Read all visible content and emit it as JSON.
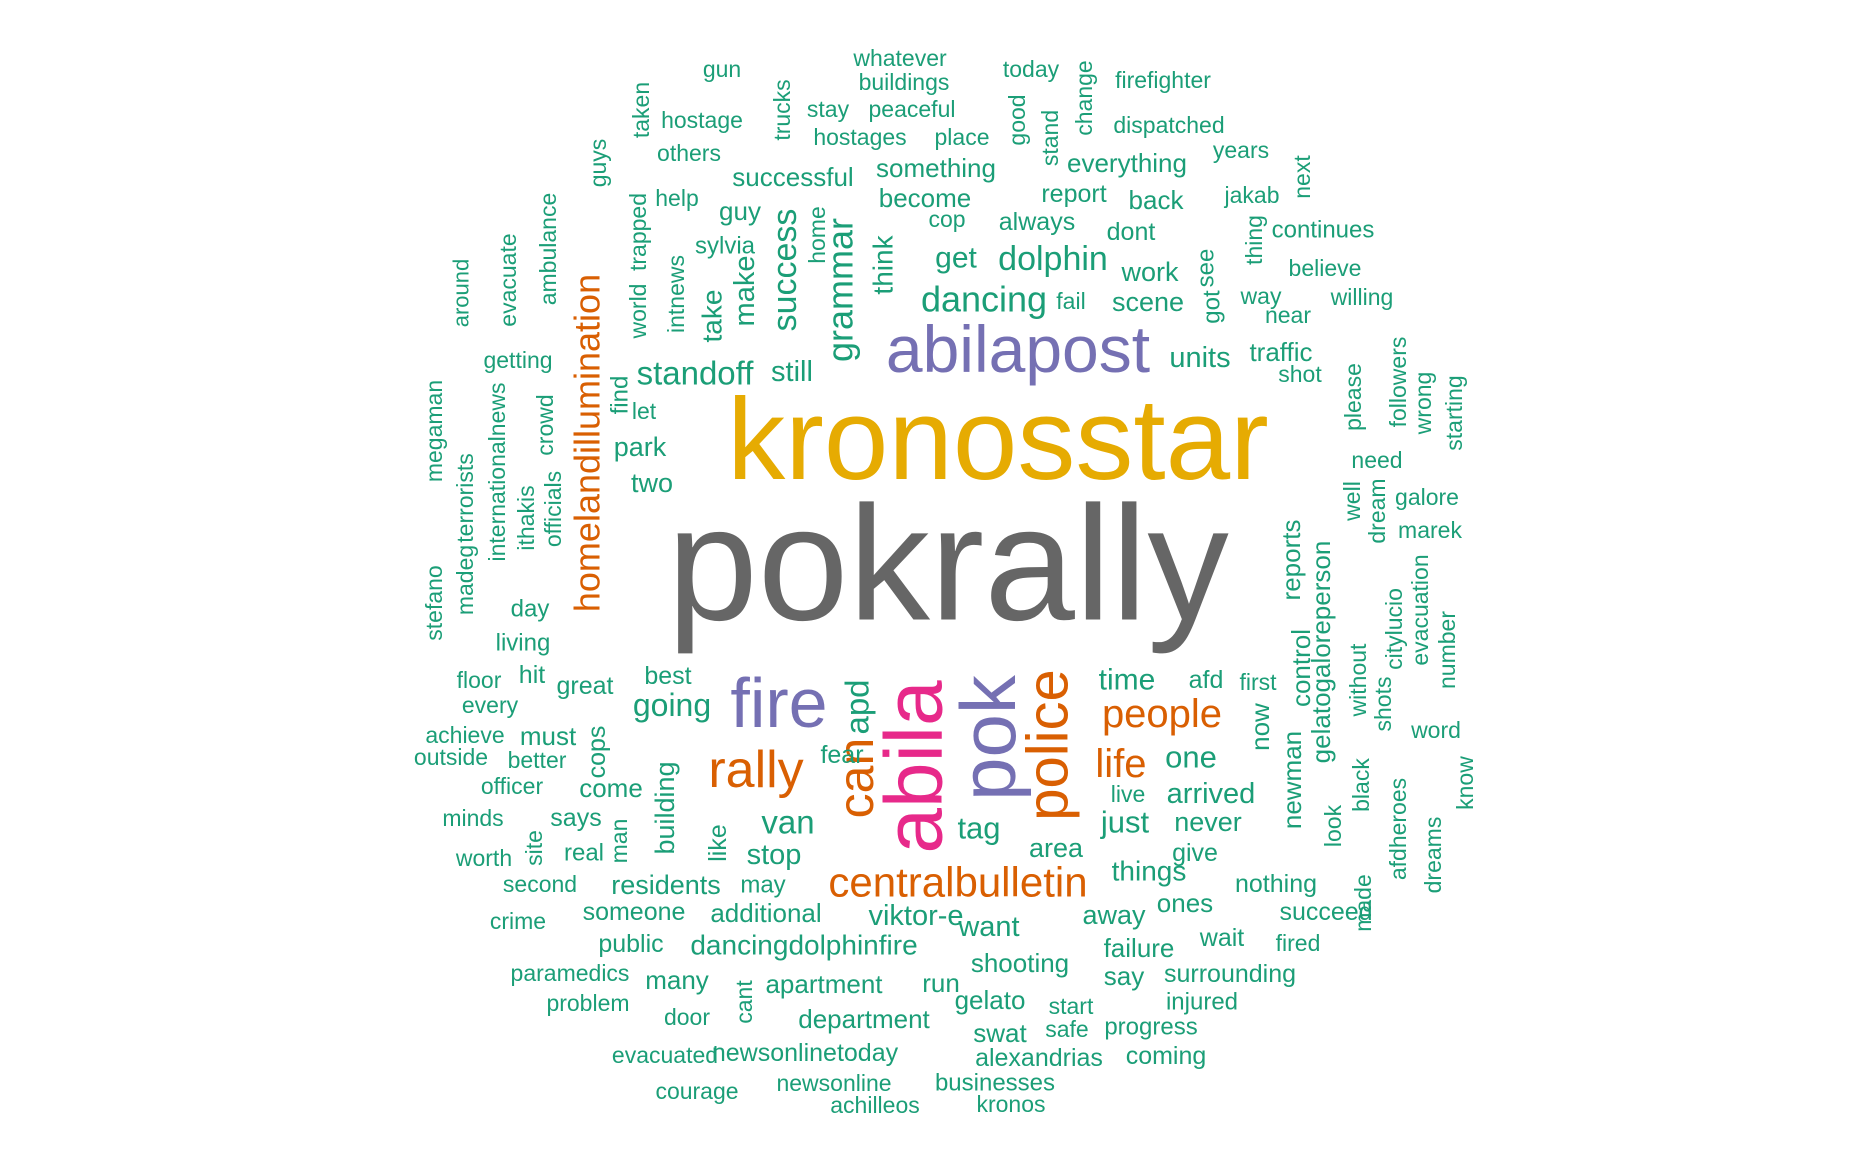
{
  "colors": {
    "green": "#1b9e77",
    "orange": "#d95f02",
    "purple": "#7570b3",
    "pink": "#e7298a",
    "gold": "#e6ab02",
    "gray": "#666666"
  },
  "words": [
    {
      "t": "pokrally",
      "c": "gray"
    },
    {
      "t": "kronosstar",
      "c": "gold"
    },
    {
      "t": "abilapost",
      "c": "purple"
    },
    {
      "t": "fire",
      "c": "purple"
    },
    {
      "t": "pok",
      "c": "purple"
    },
    {
      "t": "abila",
      "c": "pink"
    },
    {
      "t": "police",
      "c": "orange"
    },
    {
      "t": "rally",
      "c": "orange"
    },
    {
      "t": "can",
      "c": "orange"
    },
    {
      "t": "centralbulletin",
      "c": "orange"
    },
    {
      "t": "people",
      "c": "orange"
    },
    {
      "t": "life",
      "c": "orange"
    },
    {
      "t": "homelandillumination",
      "c": "orange"
    },
    {
      "t": "whatever",
      "c": "green"
    },
    {
      "t": "today",
      "c": "green"
    },
    {
      "t": "gun",
      "c": "green"
    },
    {
      "t": "buildings",
      "c": "green"
    },
    {
      "t": "firefighter",
      "c": "green"
    },
    {
      "t": "change",
      "c": "green"
    },
    {
      "t": "taken",
      "c": "green"
    },
    {
      "t": "trucks",
      "c": "green"
    },
    {
      "t": "stay",
      "c": "green"
    },
    {
      "t": "peaceful",
      "c": "green"
    },
    {
      "t": "good",
      "c": "green"
    },
    {
      "t": "hostage",
      "c": "green"
    },
    {
      "t": "hostages",
      "c": "green"
    },
    {
      "t": "place",
      "c": "green"
    },
    {
      "t": "stand",
      "c": "green"
    },
    {
      "t": "dispatched",
      "c": "green"
    },
    {
      "t": "guys",
      "c": "green"
    },
    {
      "t": "others",
      "c": "green"
    },
    {
      "t": "years",
      "c": "green"
    },
    {
      "t": "something",
      "c": "green"
    },
    {
      "t": "everything",
      "c": "green"
    },
    {
      "t": "successful",
      "c": "green"
    },
    {
      "t": "next",
      "c": "green"
    },
    {
      "t": "help",
      "c": "green"
    },
    {
      "t": "become",
      "c": "green"
    },
    {
      "t": "report",
      "c": "green"
    },
    {
      "t": "back",
      "c": "green"
    },
    {
      "t": "jakab",
      "c": "green"
    },
    {
      "t": "ambulance",
      "c": "green"
    },
    {
      "t": "trapped",
      "c": "green"
    },
    {
      "t": "guy",
      "c": "green"
    },
    {
      "t": "cop",
      "c": "green"
    },
    {
      "t": "always",
      "c": "green"
    },
    {
      "t": "home",
      "c": "green"
    },
    {
      "t": "dont",
      "c": "green"
    },
    {
      "t": "thing",
      "c": "green"
    },
    {
      "t": "continues",
      "c": "green"
    },
    {
      "t": "evacuate",
      "c": "green"
    },
    {
      "t": "sylvia",
      "c": "green"
    },
    {
      "t": "success",
      "c": "green"
    },
    {
      "t": "grammar",
      "c": "green"
    },
    {
      "t": "think",
      "c": "green"
    },
    {
      "t": "get",
      "c": "green"
    },
    {
      "t": "dolphin",
      "c": "green"
    },
    {
      "t": "see",
      "c": "green"
    },
    {
      "t": "around",
      "c": "green"
    },
    {
      "t": "world",
      "c": "green"
    },
    {
      "t": "intnews",
      "c": "green"
    },
    {
      "t": "make",
      "c": "green"
    },
    {
      "t": "work",
      "c": "green"
    },
    {
      "t": "believe",
      "c": "green"
    },
    {
      "t": "take",
      "c": "green"
    },
    {
      "t": "dancing",
      "c": "green"
    },
    {
      "t": "fail",
      "c": "green"
    },
    {
      "t": "scene",
      "c": "green"
    },
    {
      "t": "got",
      "c": "green"
    },
    {
      "t": "way",
      "c": "green"
    },
    {
      "t": "willing",
      "c": "green"
    },
    {
      "t": "near",
      "c": "green"
    },
    {
      "t": "getting",
      "c": "green"
    },
    {
      "t": "standoff",
      "c": "green"
    },
    {
      "t": "still",
      "c": "green"
    },
    {
      "t": "units",
      "c": "green"
    },
    {
      "t": "traffic",
      "c": "green"
    },
    {
      "t": "followers",
      "c": "green"
    },
    {
      "t": "find",
      "c": "green"
    },
    {
      "t": "shot",
      "c": "green"
    },
    {
      "t": "wrong",
      "c": "green"
    },
    {
      "t": "starting",
      "c": "green"
    },
    {
      "t": "megaman",
      "c": "green"
    },
    {
      "t": "internationalnews",
      "c": "green"
    },
    {
      "t": "crowd",
      "c": "green"
    },
    {
      "t": "let",
      "c": "green"
    },
    {
      "t": "please",
      "c": "green"
    },
    {
      "t": "park",
      "c": "green"
    },
    {
      "t": "need",
      "c": "green"
    },
    {
      "t": "terrorists",
      "c": "green"
    },
    {
      "t": "two",
      "c": "green"
    },
    {
      "t": "galore",
      "c": "green"
    },
    {
      "t": "officials",
      "c": "green"
    },
    {
      "t": "ithakis",
      "c": "green"
    },
    {
      "t": "well",
      "c": "green"
    },
    {
      "t": "dream",
      "c": "green"
    },
    {
      "t": "marek",
      "c": "green"
    },
    {
      "t": "reports",
      "c": "green"
    },
    {
      "t": "madeg",
      "c": "green"
    },
    {
      "t": "stefano",
      "c": "green"
    },
    {
      "t": "day",
      "c": "green"
    },
    {
      "t": "evacuation",
      "c": "green"
    },
    {
      "t": "gelatogaloreperson",
      "c": "green"
    },
    {
      "t": "citylucio",
      "c": "green"
    },
    {
      "t": "control",
      "c": "green"
    },
    {
      "t": "living",
      "c": "green"
    },
    {
      "t": "number",
      "c": "green"
    },
    {
      "t": "without",
      "c": "green"
    },
    {
      "t": "shots",
      "c": "green"
    },
    {
      "t": "time",
      "c": "green"
    },
    {
      "t": "floor",
      "c": "green"
    },
    {
      "t": "hit",
      "c": "green"
    },
    {
      "t": "best",
      "c": "green"
    },
    {
      "t": "afd",
      "c": "green"
    },
    {
      "t": "first",
      "c": "green"
    },
    {
      "t": "great",
      "c": "green"
    },
    {
      "t": "every",
      "c": "green"
    },
    {
      "t": "going",
      "c": "green"
    },
    {
      "t": "apd",
      "c": "green"
    },
    {
      "t": "word",
      "c": "green"
    },
    {
      "t": "achieve",
      "c": "green"
    },
    {
      "t": "must",
      "c": "green"
    },
    {
      "t": "now",
      "c": "green"
    },
    {
      "t": "cops",
      "c": "green"
    },
    {
      "t": "fear",
      "c": "green"
    },
    {
      "t": "one",
      "c": "green"
    },
    {
      "t": "outside",
      "c": "green"
    },
    {
      "t": "better",
      "c": "green"
    },
    {
      "t": "newman",
      "c": "green"
    },
    {
      "t": "black",
      "c": "green"
    },
    {
      "t": "officer",
      "c": "green"
    },
    {
      "t": "come",
      "c": "green"
    },
    {
      "t": "live",
      "c": "green"
    },
    {
      "t": "arrived",
      "c": "green"
    },
    {
      "t": "know",
      "c": "green"
    },
    {
      "t": "building",
      "c": "green"
    },
    {
      "t": "minds",
      "c": "green"
    },
    {
      "t": "says",
      "c": "green"
    },
    {
      "t": "van",
      "c": "green"
    },
    {
      "t": "just",
      "c": "green"
    },
    {
      "t": "never",
      "c": "green"
    },
    {
      "t": "tag",
      "c": "green"
    },
    {
      "t": "look",
      "c": "green"
    },
    {
      "t": "afdheroes",
      "c": "green"
    },
    {
      "t": "dreams",
      "c": "green"
    },
    {
      "t": "site",
      "c": "green"
    },
    {
      "t": "man",
      "c": "green"
    },
    {
      "t": "like",
      "c": "green"
    },
    {
      "t": "area",
      "c": "green"
    },
    {
      "t": "worth",
      "c": "green"
    },
    {
      "t": "real",
      "c": "green"
    },
    {
      "t": "stop",
      "c": "green"
    },
    {
      "t": "give",
      "c": "green"
    },
    {
      "t": "things",
      "c": "green"
    },
    {
      "t": "second",
      "c": "green"
    },
    {
      "t": "residents",
      "c": "green"
    },
    {
      "t": "may",
      "c": "green"
    },
    {
      "t": "nothing",
      "c": "green"
    },
    {
      "t": "made",
      "c": "green"
    },
    {
      "t": "ones",
      "c": "green"
    },
    {
      "t": "someone",
      "c": "green"
    },
    {
      "t": "additional",
      "c": "green"
    },
    {
      "t": "viktor-e",
      "c": "green"
    },
    {
      "t": "away",
      "c": "green"
    },
    {
      "t": "succeed",
      "c": "green"
    },
    {
      "t": "crime",
      "c": "green"
    },
    {
      "t": "want",
      "c": "green"
    },
    {
      "t": "wait",
      "c": "green"
    },
    {
      "t": "public",
      "c": "green"
    },
    {
      "t": "dancingdolphinfire",
      "c": "green"
    },
    {
      "t": "failure",
      "c": "green"
    },
    {
      "t": "fired",
      "c": "green"
    },
    {
      "t": "shooting",
      "c": "green"
    },
    {
      "t": "paramedics",
      "c": "green"
    },
    {
      "t": "many",
      "c": "green"
    },
    {
      "t": "say",
      "c": "green"
    },
    {
      "t": "surrounding",
      "c": "green"
    },
    {
      "t": "apartment",
      "c": "green"
    },
    {
      "t": "run",
      "c": "green"
    },
    {
      "t": "cant",
      "c": "green"
    },
    {
      "t": "problem",
      "c": "green"
    },
    {
      "t": "gelato",
      "c": "green"
    },
    {
      "t": "start",
      "c": "green"
    },
    {
      "t": "injured",
      "c": "green"
    },
    {
      "t": "door",
      "c": "green"
    },
    {
      "t": "department",
      "c": "green"
    },
    {
      "t": "swat",
      "c": "green"
    },
    {
      "t": "safe",
      "c": "green"
    },
    {
      "t": "progress",
      "c": "green"
    },
    {
      "t": "evacuated",
      "c": "green"
    },
    {
      "t": "newsonlinetoday",
      "c": "green"
    },
    {
      "t": "alexandrias",
      "c": "green"
    },
    {
      "t": "coming",
      "c": "green"
    },
    {
      "t": "courage",
      "c": "green"
    },
    {
      "t": "newsonline",
      "c": "green"
    },
    {
      "t": "businesses",
      "c": "green"
    },
    {
      "t": "achilleos",
      "c": "green"
    },
    {
      "t": "kronos",
      "c": "green"
    }
  ]
}
